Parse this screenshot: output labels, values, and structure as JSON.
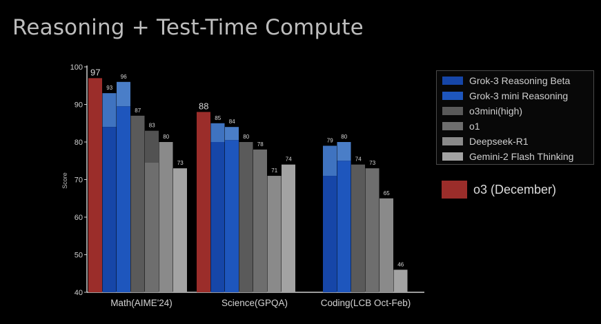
{
  "page_title": "Reasoning + Test-Time Compute",
  "chart_data": {
    "type": "bar",
    "ylabel": "Score",
    "xlabel": "",
    "ylim": [
      40,
      100
    ],
    "yticks": [
      40,
      50,
      60,
      70,
      80,
      90,
      100
    ],
    "categories": [
      "Math(AIME'24)",
      "Science(GPQA)",
      "Coding(LCB Oct-Feb)"
    ],
    "series": [
      {
        "name": "o3 (December)",
        "color": "#9b2d2a",
        "values": [
          97,
          88,
          null
        ]
      },
      {
        "name": "Grok-3 Reasoning Beta",
        "color": "#1646a8",
        "light_color": "#3f73c0",
        "values": [
          93,
          85,
          79
        ],
        "base_values": [
          84,
          80,
          71
        ]
      },
      {
        "name": "Grok-3 mini Reasoning",
        "color": "#1e56bd",
        "light_color": "#4a7ec8",
        "values": [
          96,
          84,
          80
        ],
        "base_values": [
          89.5,
          80.5,
          75
        ]
      },
      {
        "name": "o3mini(high)",
        "color": "#5a5a5a",
        "values": [
          87,
          80,
          74
        ]
      },
      {
        "name": "o1",
        "color": "#6e6e6e",
        "values": [
          83,
          78,
          73
        ],
        "base_values": [
          74.5,
          null,
          null
        ]
      },
      {
        "name": "Deepseek-R1",
        "color": "#8a8a8a",
        "values": [
          80,
          71,
          65
        ]
      },
      {
        "name": "Gemini-2 Flash Thinking",
        "color": "#a3a3a3",
        "values": [
          73,
          74,
          46
        ]
      }
    ],
    "data_labels": [
      [
        "97",
        "93",
        "96",
        "87",
        "83",
        "80",
        "73"
      ],
      [
        "88",
        "85",
        "84",
        "80",
        "78",
        "71",
        "74"
      ],
      [
        null,
        "79",
        "80",
        "74",
        "73",
        "65",
        "46"
      ]
    ],
    "legend_position": "right",
    "grid": false
  }
}
